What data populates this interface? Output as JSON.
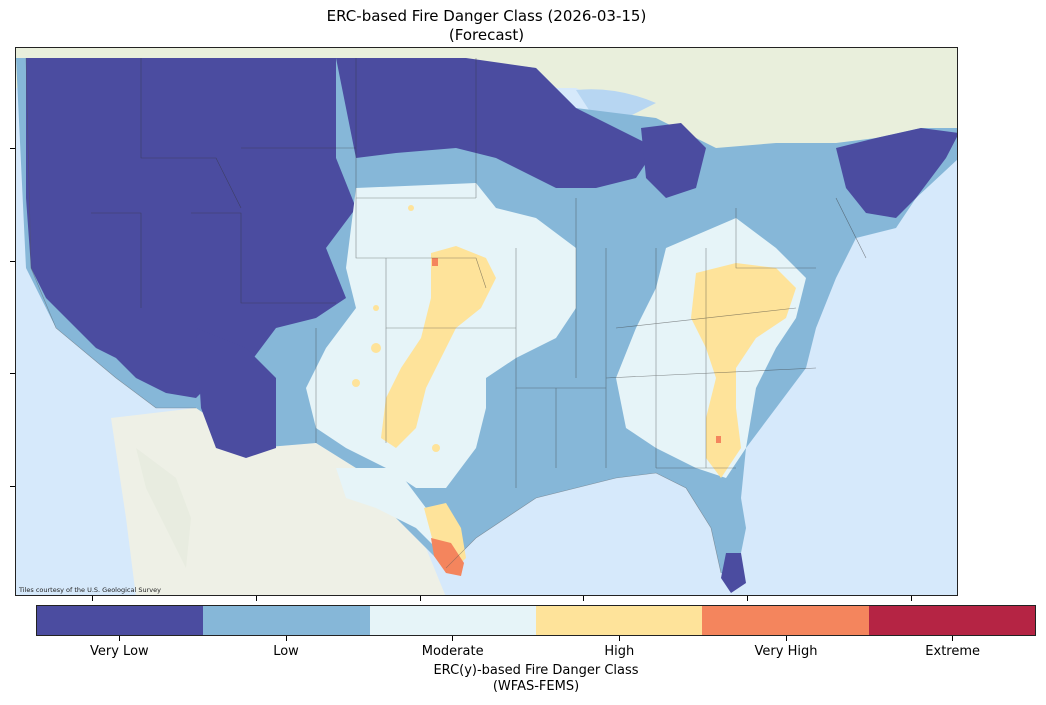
{
  "title": {
    "line1": "ERC-based Fire Danger Class (2026-03-15)",
    "line2": "(Forecast)"
  },
  "map": {
    "attribution": "Tiles courtesy of the U.S. Geological Survey",
    "region": "Contiguous United States",
    "basemap_colors": {
      "ocean": "#d6e9fb",
      "land": "#f2f0ea",
      "lakes": "#b7d6f2"
    }
  },
  "colorbar": {
    "title_line1": "ERC(y)-based Fire Danger Class",
    "title_line2": "(WFAS-FEMS)",
    "classes": [
      {
        "label": "Very Low",
        "color": "#4b4ca0"
      },
      {
        "label": "Low",
        "color": "#86b7d8"
      },
      {
        "label": "Moderate",
        "color": "#e6f4f8"
      },
      {
        "label": "High",
        "color": "#fee39a"
      },
      {
        "label": "Very High",
        "color": "#f4855d"
      },
      {
        "label": "Extreme",
        "color": "#b52444"
      }
    ]
  }
}
